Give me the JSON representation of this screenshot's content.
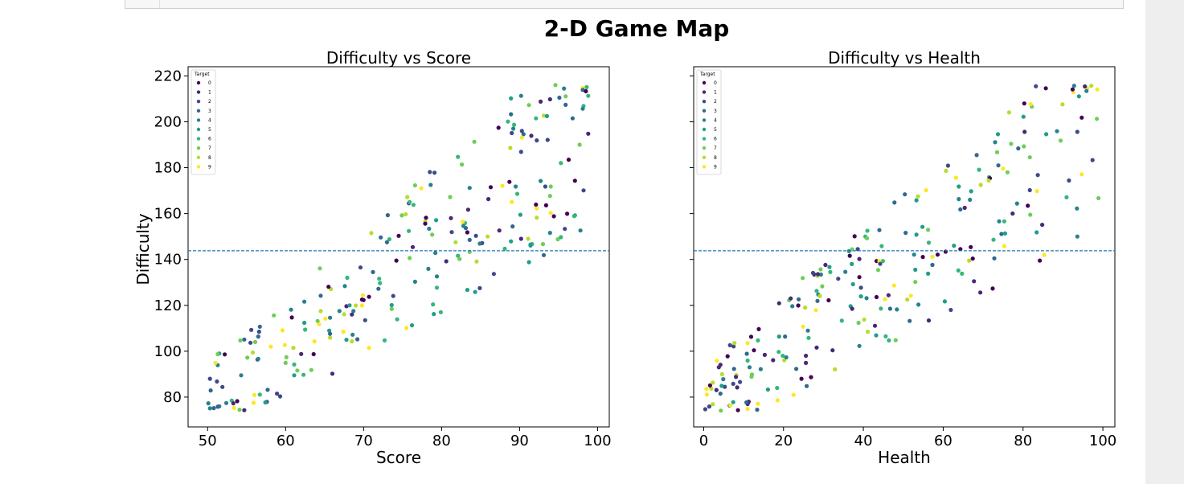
{
  "figure": {
    "suptitle": "2-D Game Map"
  },
  "legend_title": "Target",
  "chart_data": [
    {
      "type": "scatter",
      "title": "Difficulty vs Score",
      "xlabel": "Score",
      "ylabel": "Difficulty",
      "xlim": [
        47.5,
        101.5
      ],
      "ylim": [
        67,
        224
      ],
      "xticks": [
        50,
        60,
        70,
        80,
        90,
        100
      ],
      "yticks": [
        80,
        100,
        120,
        140,
        160,
        180,
        200,
        220
      ],
      "hline": {
        "y": 143.8,
        "style": "dashed"
      },
      "legend": {
        "title": "Target",
        "position": "upper-left",
        "labels": [
          "0",
          "1",
          "2",
          "3",
          "4",
          "5",
          "6",
          "7",
          "8",
          "9"
        ]
      },
      "grid": false,
      "colormap": "viridis",
      "points": []
    },
    {
      "type": "scatter",
      "title": "Difficulty vs Health",
      "xlabel": "Health",
      "ylabel": "",
      "xlim": [
        -2.5,
        103
      ],
      "ylim": [
        67,
        224
      ],
      "xticks": [
        0,
        20,
        40,
        60,
        80,
        100
      ],
      "yticks": [
        80,
        100,
        120,
        140,
        160,
        180,
        200,
        220
      ],
      "hline": {
        "y": 143.8,
        "style": "dashed"
      },
      "legend": {
        "title": "Target",
        "position": "upper-left",
        "labels": [
          "0",
          "1",
          "2",
          "3",
          "4",
          "5",
          "6",
          "7",
          "8",
          "9"
        ]
      },
      "grid": false,
      "colormap": "viridis",
      "points": []
    }
  ],
  "colors": [
    "#440154",
    "#482878",
    "#3e4989",
    "#31688e",
    "#26828e",
    "#1f9e89",
    "#35b779",
    "#6ece58",
    "#b5de2b",
    "#fde725"
  ],
  "hline_color": "#1f77b4"
}
